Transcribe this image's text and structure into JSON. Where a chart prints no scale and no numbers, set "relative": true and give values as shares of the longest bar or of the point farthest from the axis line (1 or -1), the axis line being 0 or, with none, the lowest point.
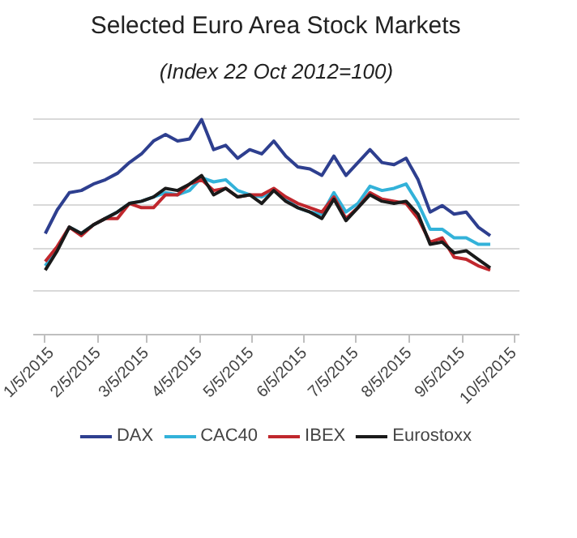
{
  "chart_data": {
    "type": "line",
    "title": "Selected Euro Area Stock Markets",
    "subtitle": "(Index 22 Oct 2012=100)",
    "relative": true,
    "grid": "y",
    "legend": "bottom",
    "line_style": "solid",
    "x": [
      "2015-01-05",
      "2015-01-12",
      "2015-01-19",
      "2015-01-26",
      "2015-02-02",
      "2015-02-09",
      "2015-02-16",
      "2015-02-23",
      "2015-03-02",
      "2015-03-09",
      "2015-03-16",
      "2015-03-23",
      "2015-03-30",
      "2015-04-06",
      "2015-04-13",
      "2015-04-20",
      "2015-04-27",
      "2015-05-04",
      "2015-05-11",
      "2015-05-18",
      "2015-05-25",
      "2015-06-01",
      "2015-06-08",
      "2015-06-15",
      "2015-06-22",
      "2015-06-29",
      "2015-07-06",
      "2015-07-13",
      "2015-07-20",
      "2015-07-27",
      "2015-08-03",
      "2015-08-10",
      "2015-08-17",
      "2015-08-24",
      "2015-08-31",
      "2015-09-07",
      "2015-09-14",
      "2015-09-21"
    ],
    "xlim": [
      "2014-12-29",
      "2015-10-08"
    ],
    "xticks": [
      {
        "value": "2015-01-05",
        "label": "1/5/2015"
      },
      {
        "value": "2015-02-05",
        "label": "2/5/2015"
      },
      {
        "value": "2015-03-05",
        "label": "3/5/2015"
      },
      {
        "value": "2015-04-05",
        "label": "4/5/2015"
      },
      {
        "value": "2015-05-05",
        "label": "5/5/2015"
      },
      {
        "value": "2015-06-05",
        "label": "6/5/2015"
      },
      {
        "value": "2015-07-05",
        "label": "7/5/2015"
      },
      {
        "value": "2015-08-05",
        "label": "8/5/2015"
      },
      {
        "value": "2015-09-05",
        "label": "9/5/2015"
      },
      {
        "value": "2015-10-05",
        "label": "10/5/2015"
      }
    ],
    "series": [
      {
        "name": "DAX",
        "color": "#2e3f8f",
        "values": [
          0.47,
          0.58,
          0.66,
          0.67,
          0.7,
          0.72,
          0.75,
          0.8,
          0.84,
          0.9,
          0.93,
          0.9,
          0.91,
          1.0,
          0.86,
          0.88,
          0.82,
          0.86,
          0.84,
          0.9,
          0.83,
          0.78,
          0.77,
          0.74,
          0.83,
          0.74,
          0.8,
          0.86,
          0.8,
          0.79,
          0.82,
          0.72,
          0.57,
          0.6,
          0.56,
          0.57,
          0.5,
          0.46
        ]
      },
      {
        "name": "CAC40",
        "color": "#33b2d9",
        "values": [
          0.32,
          0.4,
          0.5,
          0.47,
          0.51,
          0.54,
          0.57,
          0.61,
          0.62,
          0.64,
          0.66,
          0.65,
          0.67,
          0.73,
          0.71,
          0.72,
          0.67,
          0.65,
          0.64,
          0.67,
          0.63,
          0.59,
          0.57,
          0.56,
          0.66,
          0.57,
          0.61,
          0.69,
          0.67,
          0.68,
          0.7,
          0.61,
          0.49,
          0.49,
          0.45,
          0.45,
          0.42,
          0.42
        ]
      },
      {
        "name": "IBEX",
        "color": "#c0272d",
        "values": [
          0.34,
          0.41,
          0.5,
          0.46,
          0.51,
          0.54,
          0.54,
          0.61,
          0.59,
          0.59,
          0.65,
          0.65,
          0.7,
          0.72,
          0.67,
          0.68,
          0.64,
          0.65,
          0.65,
          0.68,
          0.64,
          0.61,
          0.59,
          0.57,
          0.64,
          0.54,
          0.59,
          0.66,
          0.63,
          0.62,
          0.61,
          0.54,
          0.43,
          0.45,
          0.36,
          0.35,
          0.32,
          0.3
        ]
      },
      {
        "name": "Eurostoxx",
        "color": "#1a1a1a",
        "values": [
          0.3,
          0.39,
          0.5,
          0.47,
          0.51,
          0.54,
          0.57,
          0.61,
          0.62,
          0.64,
          0.68,
          0.67,
          0.7,
          0.74,
          0.65,
          0.68,
          0.64,
          0.65,
          0.61,
          0.67,
          0.62,
          0.59,
          0.57,
          0.54,
          0.63,
          0.53,
          0.59,
          0.65,
          0.62,
          0.61,
          0.62,
          0.56,
          0.42,
          0.43,
          0.38,
          0.39,
          0.35,
          0.31
        ]
      }
    ]
  }
}
